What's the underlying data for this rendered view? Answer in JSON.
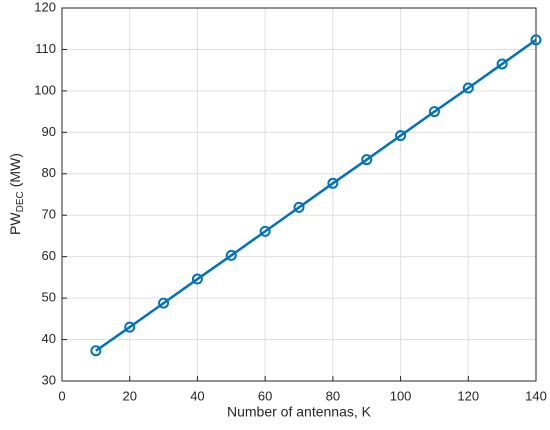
{
  "chart_data": {
    "type": "line",
    "x_label": "Number of antennas, K",
    "y_label": [
      "PW",
      "DEC",
      "(MW)"
    ],
    "x": [
      10,
      20,
      30,
      40,
      50,
      60,
      70,
      80,
      90,
      100,
      110,
      120,
      130,
      140
    ],
    "values": [
      37.3,
      43.0,
      48.8,
      54.6,
      60.3,
      66.1,
      71.9,
      77.7,
      83.4,
      89.2,
      95.0,
      100.7,
      106.5,
      112.3
    ],
    "color": "#0072bd",
    "marker": "circle",
    "xlim": [
      0,
      140
    ],
    "xticks": [
      0,
      20,
      40,
      60,
      80,
      100,
      120,
      140
    ],
    "ylim": [
      30,
      120
    ],
    "yticks": [
      30,
      40,
      50,
      60,
      70,
      80,
      90,
      100,
      110,
      120
    ],
    "grid": true
  }
}
